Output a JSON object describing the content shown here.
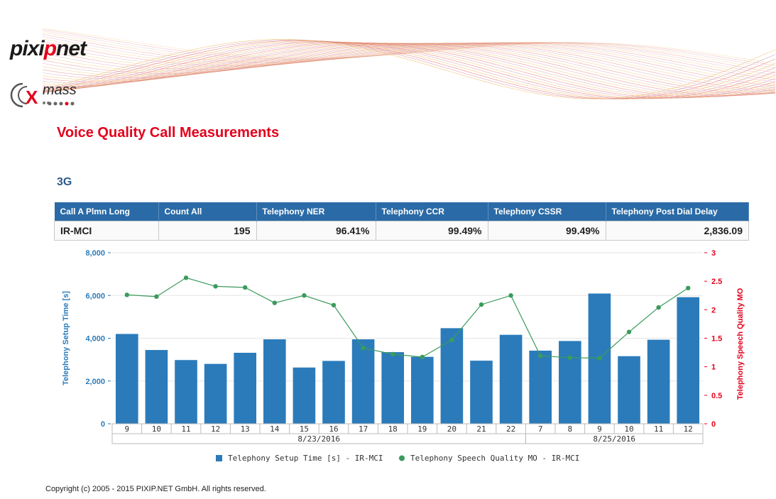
{
  "brand": {
    "logo_pixip_part1": "pixi",
    "logo_pixip_part2": "p",
    "logo_pixip_part3": "net",
    "logo_xmass": "mass"
  },
  "page": {
    "title": "Voice Quality Call Measurements",
    "section": "3G"
  },
  "table": {
    "headers": [
      "Call A Plmn Long",
      "Count All",
      "Telephony NER",
      "Telephony CCR",
      "Telephony CSSR",
      "Telephony Post Dial Delay"
    ],
    "rows": [
      [
        "IR-MCI",
        "195",
        "96.41%",
        "99.49%",
        "99.49%",
        "2,836.09"
      ]
    ]
  },
  "chart_data": {
    "type": "bar",
    "categories": [
      "9",
      "10",
      "11",
      "12",
      "13",
      "14",
      "15",
      "16",
      "17",
      "18",
      "19",
      "20",
      "21",
      "22",
      "7",
      "8",
      "9",
      "10",
      "11",
      "12"
    ],
    "groups": [
      {
        "label": "8/23/2016",
        "start": 0,
        "end": 13
      },
      {
        "label": "8/25/2016",
        "start": 14,
        "end": 19
      }
    ],
    "series": [
      {
        "name": "Telephony Setup Time [s] - IR-MCI",
        "type": "bar",
        "axis": "left",
        "color": "#2b7bba",
        "values": [
          4200,
          3450,
          2980,
          2800,
          3320,
          3950,
          2630,
          2940,
          3950,
          3350,
          3130,
          4470,
          2950,
          4160,
          3420,
          3870,
          6090,
          3160,
          3930,
          5920
        ]
      },
      {
        "name": "Telephony Speech Quality MO - IR-MCI",
        "type": "line",
        "axis": "right",
        "color": "#3a9b5c",
        "values": [
          2.26,
          2.23,
          2.56,
          2.41,
          2.39,
          2.12,
          2.25,
          2.08,
          1.33,
          1.22,
          1.17,
          1.47,
          2.09,
          2.25,
          1.19,
          1.16,
          1.15,
          1.61,
          2.04,
          2.38
        ]
      }
    ],
    "ylabel": "Telephony Setup Time [s]",
    "ylabel_right": "Telephony Speech Quality MO",
    "ylim": [
      0,
      8000
    ],
    "yticks": [
      "0",
      "2,000",
      "4,000",
      "6,000",
      "8,000"
    ],
    "ylim_right": [
      0,
      3
    ],
    "yticks_right": [
      "0",
      "0.5",
      "1",
      "1.5",
      "2",
      "2.5",
      "3"
    ],
    "left_axis_color": "#2b7bba",
    "right_axis_color": "#e3001b",
    "grid": true,
    "legend_position": "bottom"
  },
  "footer": {
    "copyright": "Copyright (c) 2005 - 2015 PIXIP.NET GmbH. All rights reserved."
  }
}
